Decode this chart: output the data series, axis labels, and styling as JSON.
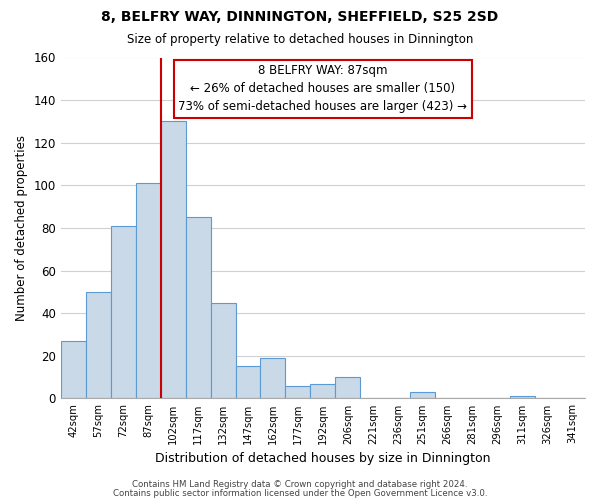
{
  "title": "8, BELFRY WAY, DINNINGTON, SHEFFIELD, S25 2SD",
  "subtitle": "Size of property relative to detached houses in Dinnington",
  "xlabel": "Distribution of detached houses by size in Dinnington",
  "ylabel": "Number of detached properties",
  "bin_labels": [
    "42sqm",
    "57sqm",
    "72sqm",
    "87sqm",
    "102sqm",
    "117sqm",
    "132sqm",
    "147sqm",
    "162sqm",
    "177sqm",
    "192sqm",
    "206sqm",
    "221sqm",
    "236sqm",
    "251sqm",
    "266sqm",
    "281sqm",
    "296sqm",
    "311sqm",
    "326sqm",
    "341sqm"
  ],
  "bar_heights": [
    27,
    50,
    81,
    101,
    130,
    85,
    45,
    15,
    19,
    6,
    7,
    10,
    0,
    0,
    3,
    0,
    0,
    0,
    1,
    0,
    0
  ],
  "bar_color": "#c9d9e8",
  "bar_edge_color": "#5b9bd5",
  "vline_color": "#cc0000",
  "ylim": [
    0,
    160
  ],
  "yticks": [
    0,
    20,
    40,
    60,
    80,
    100,
    120,
    140,
    160
  ],
  "annotation_title": "8 BELFRY WAY: 87sqm",
  "annotation_line1": "← 26% of detached houses are smaller (150)",
  "annotation_line2": "73% of semi-detached houses are larger (423) →",
  "footer_line1": "Contains HM Land Registry data © Crown copyright and database right 2024.",
  "footer_line2": "Contains public sector information licensed under the Open Government Licence v3.0.",
  "background_color": "#ffffff",
  "grid_color": "#d0d0d0"
}
